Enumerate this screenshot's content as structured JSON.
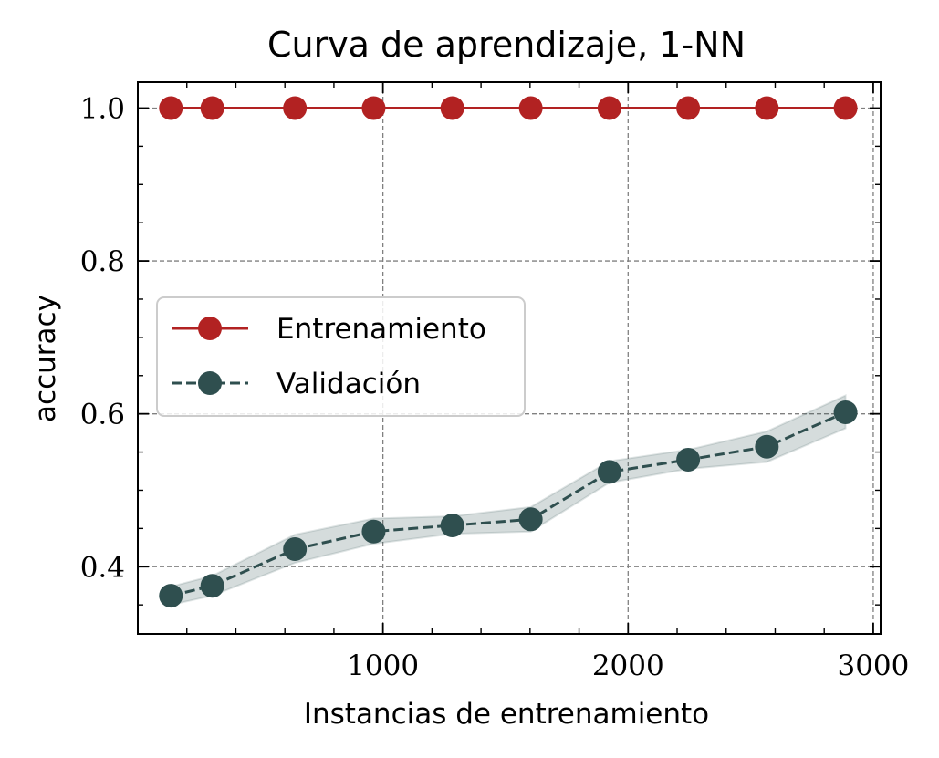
{
  "chart_data": {
    "type": "line",
    "title": "Curva de aprendizaje, 1-NN",
    "xlabel": "Instancias de entrenamiento",
    "ylabel": "accuracy",
    "xlim": [
      0,
      3030
    ],
    "ylim": [
      0.312,
      1.034
    ],
    "xticks": [
      1000,
      2000,
      3000
    ],
    "xtick_labels": [
      "1000",
      "2000",
      "3000"
    ],
    "yticks": [
      0.4,
      0.6,
      0.8,
      1.0
    ],
    "ytick_labels": [
      "0.4",
      "0.6",
      "0.8",
      "1.0"
    ],
    "grid": true,
    "legend_position": "center-left",
    "x": [
      135,
      304,
      641,
      962,
      1283,
      1603,
      1924,
      2245,
      2566,
      2887
    ],
    "series": [
      {
        "name": "Entrenamiento",
        "values": [
          1.0,
          1.0,
          1.0,
          1.0,
          1.0,
          1.0,
          1.0,
          1.0,
          1.0,
          1.0
        ],
        "color": "#b22222",
        "linestyle": "solid"
      },
      {
        "name": "Validación",
        "values": [
          0.362,
          0.375,
          0.423,
          0.446,
          0.454,
          0.462,
          0.524,
          0.54,
          0.557,
          0.602
        ],
        "band_low": [
          0.35,
          0.362,
          0.405,
          0.43,
          0.443,
          0.446,
          0.51,
          0.528,
          0.537,
          0.581
        ],
        "band_high": [
          0.374,
          0.388,
          0.442,
          0.463,
          0.466,
          0.478,
          0.538,
          0.553,
          0.577,
          0.624
        ],
        "color": "#2f4f4f",
        "linestyle": "dashed"
      }
    ]
  }
}
